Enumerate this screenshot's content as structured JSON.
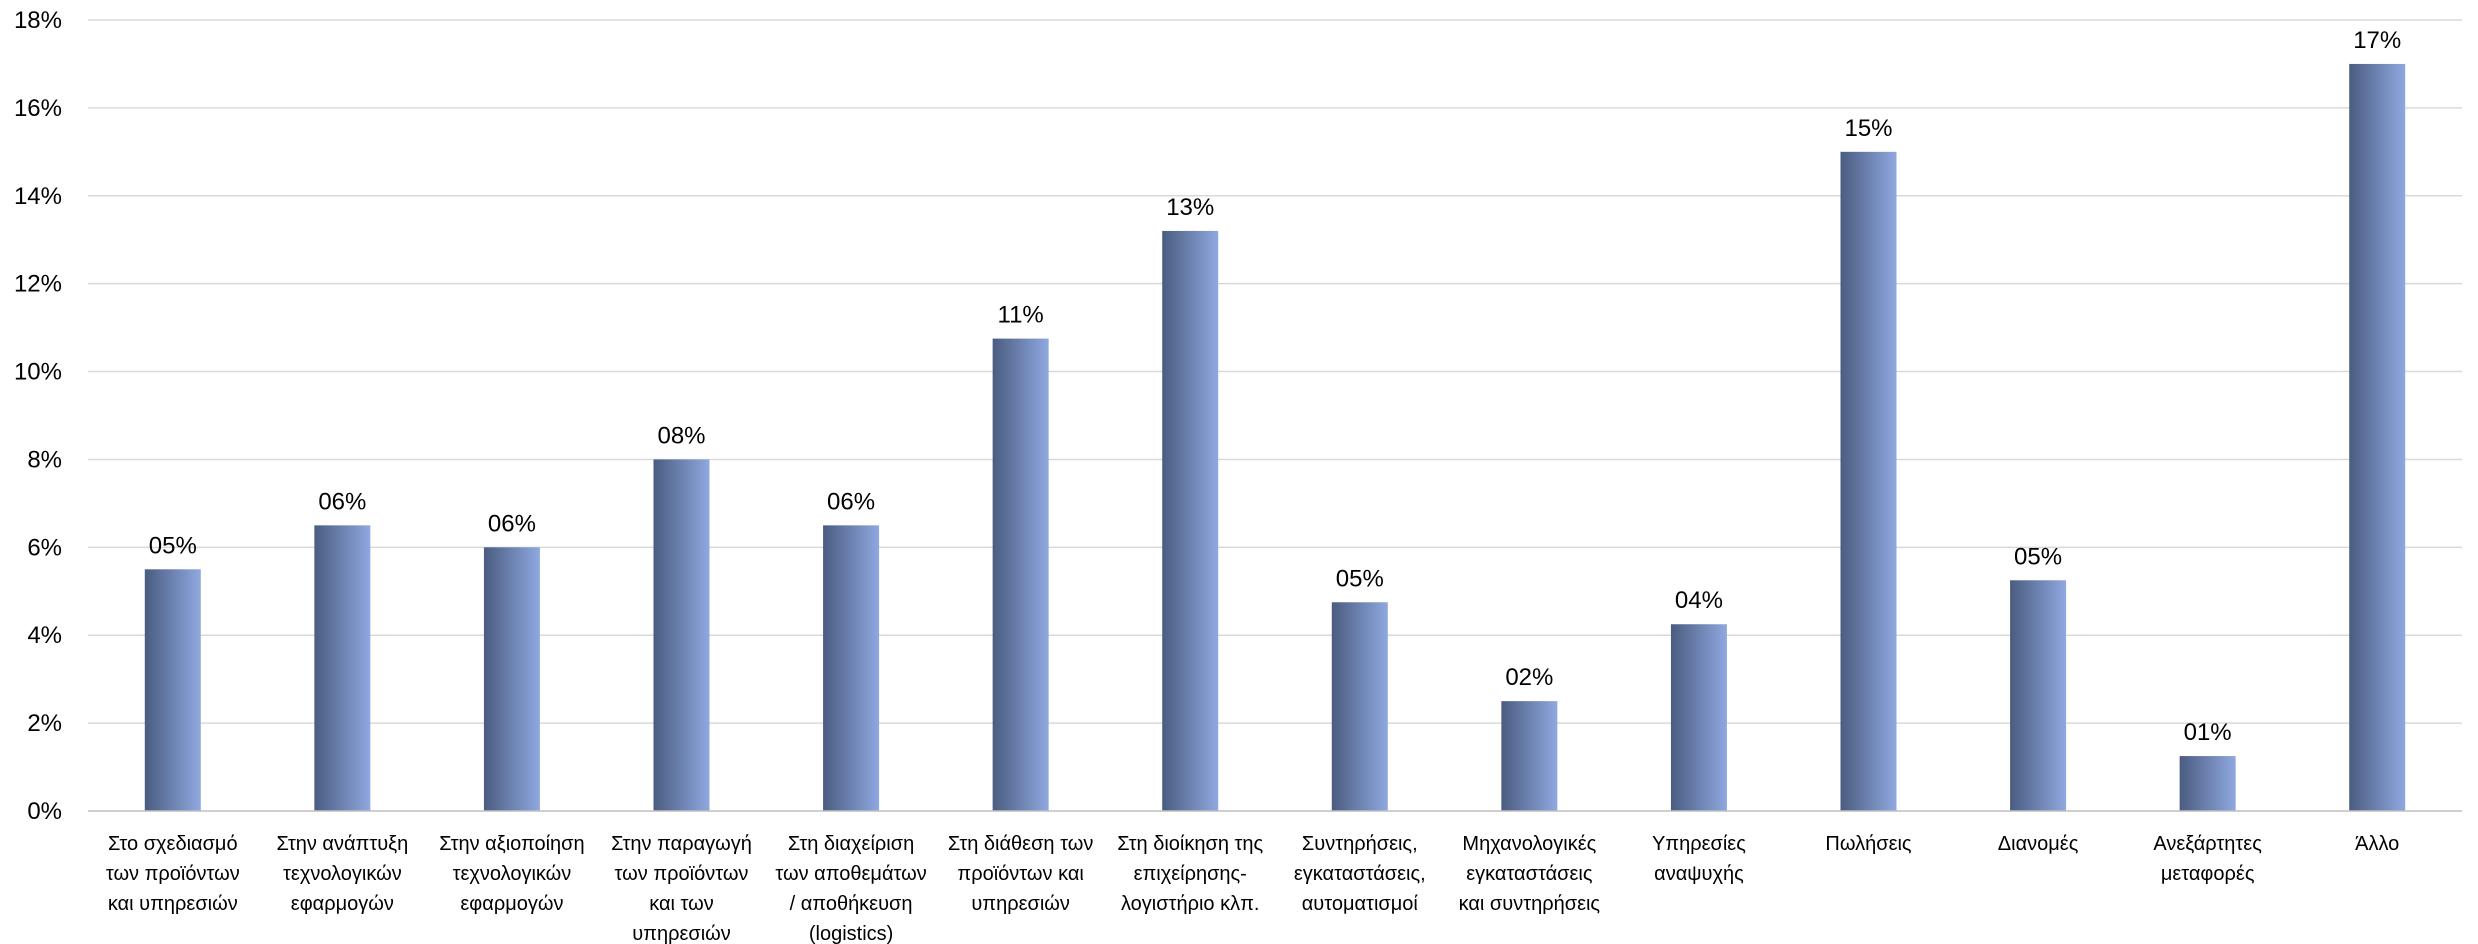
{
  "chart_data": {
    "type": "bar",
    "title": "",
    "xlabel": "",
    "ylabel": "",
    "ylim": [
      0,
      18
    ],
    "yticks": [
      0,
      2,
      4,
      6,
      8,
      10,
      12,
      14,
      16,
      18
    ],
    "ytick_labels": [
      "0%",
      "2%",
      "4%",
      "6%",
      "8%",
      "10%",
      "12%",
      "14%",
      "16%",
      "18%"
    ],
    "grid": true,
    "legend": "none",
    "bar_colors": {
      "dark": "#4a5c80",
      "light": "#8fa8e0"
    },
    "categories": [
      [
        "Στο σχεδιασμό",
        "των προϊόντων",
        "και υπηρεσιών"
      ],
      [
        "Στην ανάπτυξη",
        "τεχνολογικών",
        "εφαρμογών"
      ],
      [
        "Στην αξιοποίηση",
        "τεχνολογικών",
        "εφαρμογών"
      ],
      [
        "Στην παραγωγή",
        "των προϊόντων",
        "και των",
        "υπηρεσιών"
      ],
      [
        "Στη διαχείριση",
        "των αποθεμάτων",
        "/ αποθήκευση",
        "(logistics)"
      ],
      [
        "Στη διάθεση των",
        "προϊόντων και",
        "υπηρεσιών"
      ],
      [
        "Στη διοίκηση της",
        "επιχείρησης-",
        "λογιστήριο κλπ."
      ],
      [
        "Συντηρήσεις,",
        "εγκαταστάσεις,",
        "αυτοματισμοί"
      ],
      [
        "Μηχανολογικές",
        "εγκαταστάσεις",
        "και συντηρήσεις"
      ],
      [
        "Υπηρεσίες",
        "αναψυχής"
      ],
      [
        "Πωλήσεις"
      ],
      [
        "Διανομές"
      ],
      [
        "Ανεξάρτητες",
        "μεταφορές"
      ],
      [
        "Άλλο"
      ]
    ],
    "values": [
      5.5,
      6.5,
      6.0,
      8.0,
      6.5,
      10.75,
      13.2,
      4.75,
      2.5,
      4.25,
      15.0,
      5.25,
      1.25,
      17.0
    ],
    "data_labels": [
      "05%",
      "06%",
      "06%",
      "08%",
      "06%",
      "11%",
      "13%",
      "05%",
      "02%",
      "04%",
      "15%",
      "05%",
      "01%",
      "17%"
    ]
  }
}
